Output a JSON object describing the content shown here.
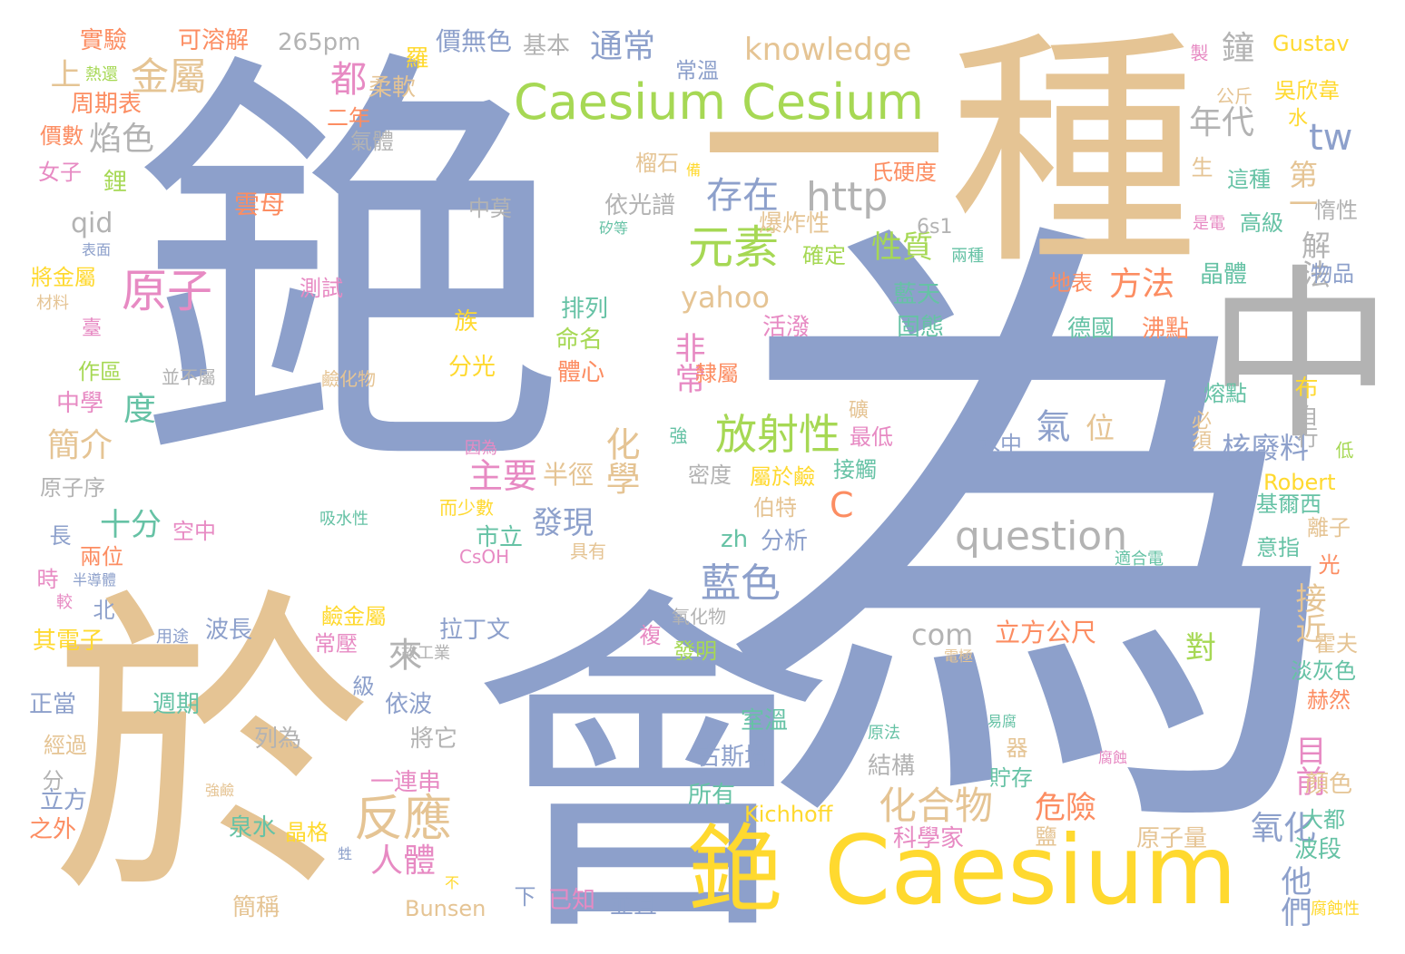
{
  "colors": {
    "background": "#ffffff",
    "blue": "#8da0cb",
    "tan": "#e5c494",
    "green": "#a6d854",
    "yellow": "#ffd92f",
    "orange": "#fc8d62",
    "pink": "#e78ac3",
    "teal": "#66c2a5",
    "gray": "#b3b3b3"
  },
  "words": [
    {
      "text": "銫",
      "color": "blue"
    },
    {
      "text": "為",
      "color": "blue"
    },
    {
      "text": "一種",
      "color": "tan"
    },
    {
      "text": "會",
      "color": "blue"
    },
    {
      "text": "於",
      "color": "tan"
    },
    {
      "text": "中",
      "color": "gray"
    },
    {
      "text": "Caesium",
      "color": "yellow"
    },
    {
      "text": "銫",
      "color": "yellow"
    },
    {
      "text": "Caesium Cesium",
      "color": "green"
    },
    {
      "text": "question",
      "color": "gray"
    },
    {
      "text": "http",
      "color": "gray"
    },
    {
      "text": "knowledge",
      "color": "tan"
    },
    {
      "text": "tw",
      "color": "blue"
    },
    {
      "text": "元素",
      "color": "green"
    },
    {
      "text": "原子",
      "color": "pink"
    },
    {
      "text": "放射性",
      "color": "green"
    },
    {
      "text": "反應",
      "color": "tan"
    },
    {
      "text": "化合物",
      "color": "tan"
    },
    {
      "text": "藍色",
      "color": "blue"
    },
    {
      "text": "存在",
      "color": "blue"
    },
    {
      "text": "金屬",
      "color": "tan"
    },
    {
      "text": "通常",
      "color": "blue"
    },
    {
      "text": "焰色",
      "color": "gray"
    },
    {
      "text": "年代",
      "color": "gray"
    },
    {
      "text": "鐘",
      "color": "gray"
    },
    {
      "text": "都",
      "color": "pink"
    },
    {
      "text": "yahoo",
      "color": "tan"
    },
    {
      "text": "com",
      "color": "gray"
    },
    {
      "text": "C",
      "color": "orange"
    },
    {
      "text": "化學",
      "color": "tan"
    },
    {
      "text": "主要",
      "color": "pink"
    },
    {
      "text": "發現",
      "color": "blue"
    },
    {
      "text": "性質",
      "color": "green"
    },
    {
      "text": "方法",
      "color": "orange"
    },
    {
      "text": "解法",
      "color": "gray"
    },
    {
      "text": "第一",
      "color": "tan"
    },
    {
      "text": "核廢料",
      "color": "blue"
    },
    {
      "text": "接近",
      "color": "tan"
    },
    {
      "text": "目前",
      "color": "pink"
    },
    {
      "text": "氧化",
      "color": "blue"
    },
    {
      "text": "他們",
      "color": "blue"
    },
    {
      "text": "危險",
      "color": "orange"
    },
    {
      "text": "十分",
      "color": "teal"
    },
    {
      "text": "簡介",
      "color": "tan"
    },
    {
      "text": "度",
      "color": "teal"
    },
    {
      "text": "非常",
      "color": "pink"
    },
    {
      "text": "上",
      "color": "tan"
    },
    {
      "text": "qid",
      "color": "gray"
    },
    {
      "text": "zh",
      "color": "teal"
    },
    {
      "text": "分析",
      "color": "blue"
    },
    {
      "text": "人體",
      "color": "pink"
    },
    {
      "text": "來",
      "color": "gray"
    },
    {
      "text": "氣",
      "color": "blue"
    },
    {
      "text": "位",
      "color": "tan"
    },
    {
      "text": "對",
      "color": "green"
    },
    {
      "text": "半徑",
      "color": "tan"
    },
    {
      "text": "實驗",
      "color": "orange"
    },
    {
      "text": "可溶解",
      "color": "orange"
    },
    {
      "text": "265pm",
      "color": "gray"
    },
    {
      "text": "羅",
      "color": "yellow"
    },
    {
      "text": "價無色",
      "color": "blue"
    },
    {
      "text": "基本",
      "color": "gray"
    },
    {
      "text": "製",
      "color": "pink"
    },
    {
      "text": "Gustav",
      "color": "yellow"
    },
    {
      "text": "熱還",
      "color": "green"
    },
    {
      "text": "周期表",
      "color": "orange"
    },
    {
      "text": "柔軟",
      "color": "tan"
    },
    {
      "text": "二年",
      "color": "orange"
    },
    {
      "text": "常溫",
      "color": "blue"
    },
    {
      "text": "吳欣韋",
      "color": "yellow"
    },
    {
      "text": "公斤",
      "color": "tan"
    },
    {
      "text": "價數",
      "color": "orange"
    },
    {
      "text": "氣體",
      "color": "gray"
    },
    {
      "text": "水",
      "color": "yellow"
    },
    {
      "text": "女子",
      "color": "pink"
    },
    {
      "text": "鋰",
      "color": "green"
    },
    {
      "text": "榴石",
      "color": "tan"
    },
    {
      "text": "氏硬度",
      "color": "orange"
    },
    {
      "text": "生",
      "color": "tan"
    },
    {
      "text": "這種",
      "color": "teal"
    },
    {
      "text": "雲母",
      "color": "orange"
    },
    {
      "text": "中莫",
      "color": "gray"
    },
    {
      "text": "依光譜",
      "color": "gray"
    },
    {
      "text": "惰性",
      "color": "gray"
    },
    {
      "text": "高級",
      "color": "teal"
    },
    {
      "text": "是電",
      "color": "pink"
    },
    {
      "text": "爆炸性",
      "color": "tan"
    },
    {
      "text": "6s1",
      "color": "gray"
    },
    {
      "text": "確定",
      "color": "green"
    },
    {
      "text": "兩種",
      "color": "teal"
    },
    {
      "text": "晶體",
      "color": "teal"
    },
    {
      "text": "物品",
      "color": "blue"
    },
    {
      "text": "將金屬",
      "color": "yellow"
    },
    {
      "text": "材料",
      "color": "tan"
    },
    {
      "text": "測試",
      "color": "pink"
    },
    {
      "text": "藍天",
      "color": "teal"
    },
    {
      "text": "地表",
      "color": "orange"
    },
    {
      "text": "排列",
      "color": "teal"
    },
    {
      "text": "族",
      "color": "yellow"
    },
    {
      "text": "命名",
      "color": "green"
    },
    {
      "text": "活潑",
      "color": "pink"
    },
    {
      "text": "固態",
      "color": "teal"
    },
    {
      "text": "德國",
      "color": "teal"
    },
    {
      "text": "沸點",
      "color": "orange"
    },
    {
      "text": "臺",
      "color": "pink"
    },
    {
      "text": "作區",
      "color": "green"
    },
    {
      "text": "並不屬",
      "color": "gray"
    },
    {
      "text": "分光",
      "color": "yellow"
    },
    {
      "text": "體心",
      "color": "orange"
    },
    {
      "text": "隸屬",
      "color": "orange"
    },
    {
      "text": "鹼化物",
      "color": "tan"
    },
    {
      "text": "熔點",
      "color": "teal"
    },
    {
      "text": "布",
      "color": "yellow"
    },
    {
      "text": "中學",
      "color": "pink"
    },
    {
      "text": "礦",
      "color": "tan"
    },
    {
      "text": "最低",
      "color": "pink"
    },
    {
      "text": "水中",
      "color": "blue"
    },
    {
      "text": "自行",
      "color": "gray"
    },
    {
      "text": "必須",
      "color": "tan"
    },
    {
      "text": "因為",
      "color": "pink"
    },
    {
      "text": "強",
      "color": "teal"
    },
    {
      "text": "低",
      "color": "green"
    },
    {
      "text": "原子序",
      "color": "gray"
    },
    {
      "text": "屬於鹼",
      "color": "yellow"
    },
    {
      "text": "接觸",
      "color": "teal"
    },
    {
      "text": "密度",
      "color": "gray"
    },
    {
      "text": "Robert",
      "color": "yellow"
    },
    {
      "text": "基爾西",
      "color": "teal"
    },
    {
      "text": "吸水性",
      "color": "teal"
    },
    {
      "text": "而少數",
      "color": "yellow"
    },
    {
      "text": "市立",
      "color": "teal"
    },
    {
      "text": "伯特",
      "color": "tan"
    },
    {
      "text": "離子",
      "color": "tan"
    },
    {
      "text": "長",
      "color": "blue"
    },
    {
      "text": "空中",
      "color": "pink"
    },
    {
      "text": "兩位",
      "color": "orange"
    },
    {
      "text": "CsOH",
      "color": "pink"
    },
    {
      "text": "具有",
      "color": "tan"
    },
    {
      "text": "意指",
      "color": "teal"
    },
    {
      "text": "適合電",
      "color": "teal"
    },
    {
      "text": "時",
      "color": "pink"
    },
    {
      "text": "半導體",
      "color": "blue"
    },
    {
      "text": "光",
      "color": "orange"
    },
    {
      "text": "較",
      "color": "pink"
    },
    {
      "text": "北",
      "color": "blue"
    },
    {
      "text": "鹼金屬",
      "color": "yellow"
    },
    {
      "text": "氧化物",
      "color": "gray"
    },
    {
      "text": "拉丁文",
      "color": "blue"
    },
    {
      "text": "立方公尺",
      "color": "orange"
    },
    {
      "text": "霍夫",
      "color": "tan"
    },
    {
      "text": "其電子",
      "color": "yellow"
    },
    {
      "text": "用途",
      "color": "blue"
    },
    {
      "text": "波長",
      "color": "blue"
    },
    {
      "text": "常壓",
      "color": "pink"
    },
    {
      "text": "複",
      "color": "pink"
    },
    {
      "text": "發明",
      "color": "green"
    },
    {
      "text": "故工業",
      "color": "gray"
    },
    {
      "text": "電極",
      "color": "tan"
    },
    {
      "text": "淡灰色",
      "color": "teal"
    },
    {
      "text": "級",
      "color": "blue"
    },
    {
      "text": "依波",
      "color": "blue"
    },
    {
      "text": "正當",
      "color": "blue"
    },
    {
      "text": "週期",
      "color": "teal"
    },
    {
      "text": "室溫",
      "color": "teal"
    },
    {
      "text": "赫然",
      "color": "orange"
    },
    {
      "text": "列為",
      "color": "gray"
    },
    {
      "text": "將它",
      "color": "gray"
    },
    {
      "text": "原法",
      "color": "teal"
    },
    {
      "text": "易腐",
      "color": "teal"
    },
    {
      "text": "經過",
      "color": "tan"
    },
    {
      "text": "器",
      "color": "tan"
    },
    {
      "text": "古斯塔",
      "color": "blue"
    },
    {
      "text": "腐蝕",
      "color": "pink"
    },
    {
      "text": "結構",
      "color": "gray"
    },
    {
      "text": "一連串",
      "color": "pink"
    },
    {
      "text": "分",
      "color": "gray"
    },
    {
      "text": "貯存",
      "color": "teal"
    },
    {
      "text": "顏色",
      "color": "tan"
    },
    {
      "text": "強鹼",
      "color": "tan"
    },
    {
      "text": "立方",
      "color": "blue"
    },
    {
      "text": "所有",
      "color": "teal"
    },
    {
      "text": "大都",
      "color": "teal"
    },
    {
      "text": "Kichhoff",
      "color": "yellow"
    },
    {
      "text": "之外",
      "color": "orange"
    },
    {
      "text": "泉水",
      "color": "teal"
    },
    {
      "text": "晶格",
      "color": "yellow"
    },
    {
      "text": "科學家",
      "color": "pink"
    },
    {
      "text": "鹽",
      "color": "tan"
    },
    {
      "text": "原子量",
      "color": "tan"
    },
    {
      "text": "波段",
      "color": "teal"
    },
    {
      "text": "甡",
      "color": "blue"
    },
    {
      "text": "不",
      "color": "yellow"
    },
    {
      "text": "Bunsen",
      "color": "tan"
    },
    {
      "text": "下",
      "color": "blue"
    },
    {
      "text": "已知",
      "color": "pink"
    },
    {
      "text": "並且",
      "color": "blue"
    },
    {
      "text": "簡稱",
      "color": "tan"
    },
    {
      "text": "腐蝕性",
      "color": "yellow"
    },
    {
      "text": "矽等",
      "color": "teal"
    },
    {
      "text": "表面",
      "color": "blue"
    },
    {
      "text": "備",
      "color": "yellow"
    }
  ]
}
